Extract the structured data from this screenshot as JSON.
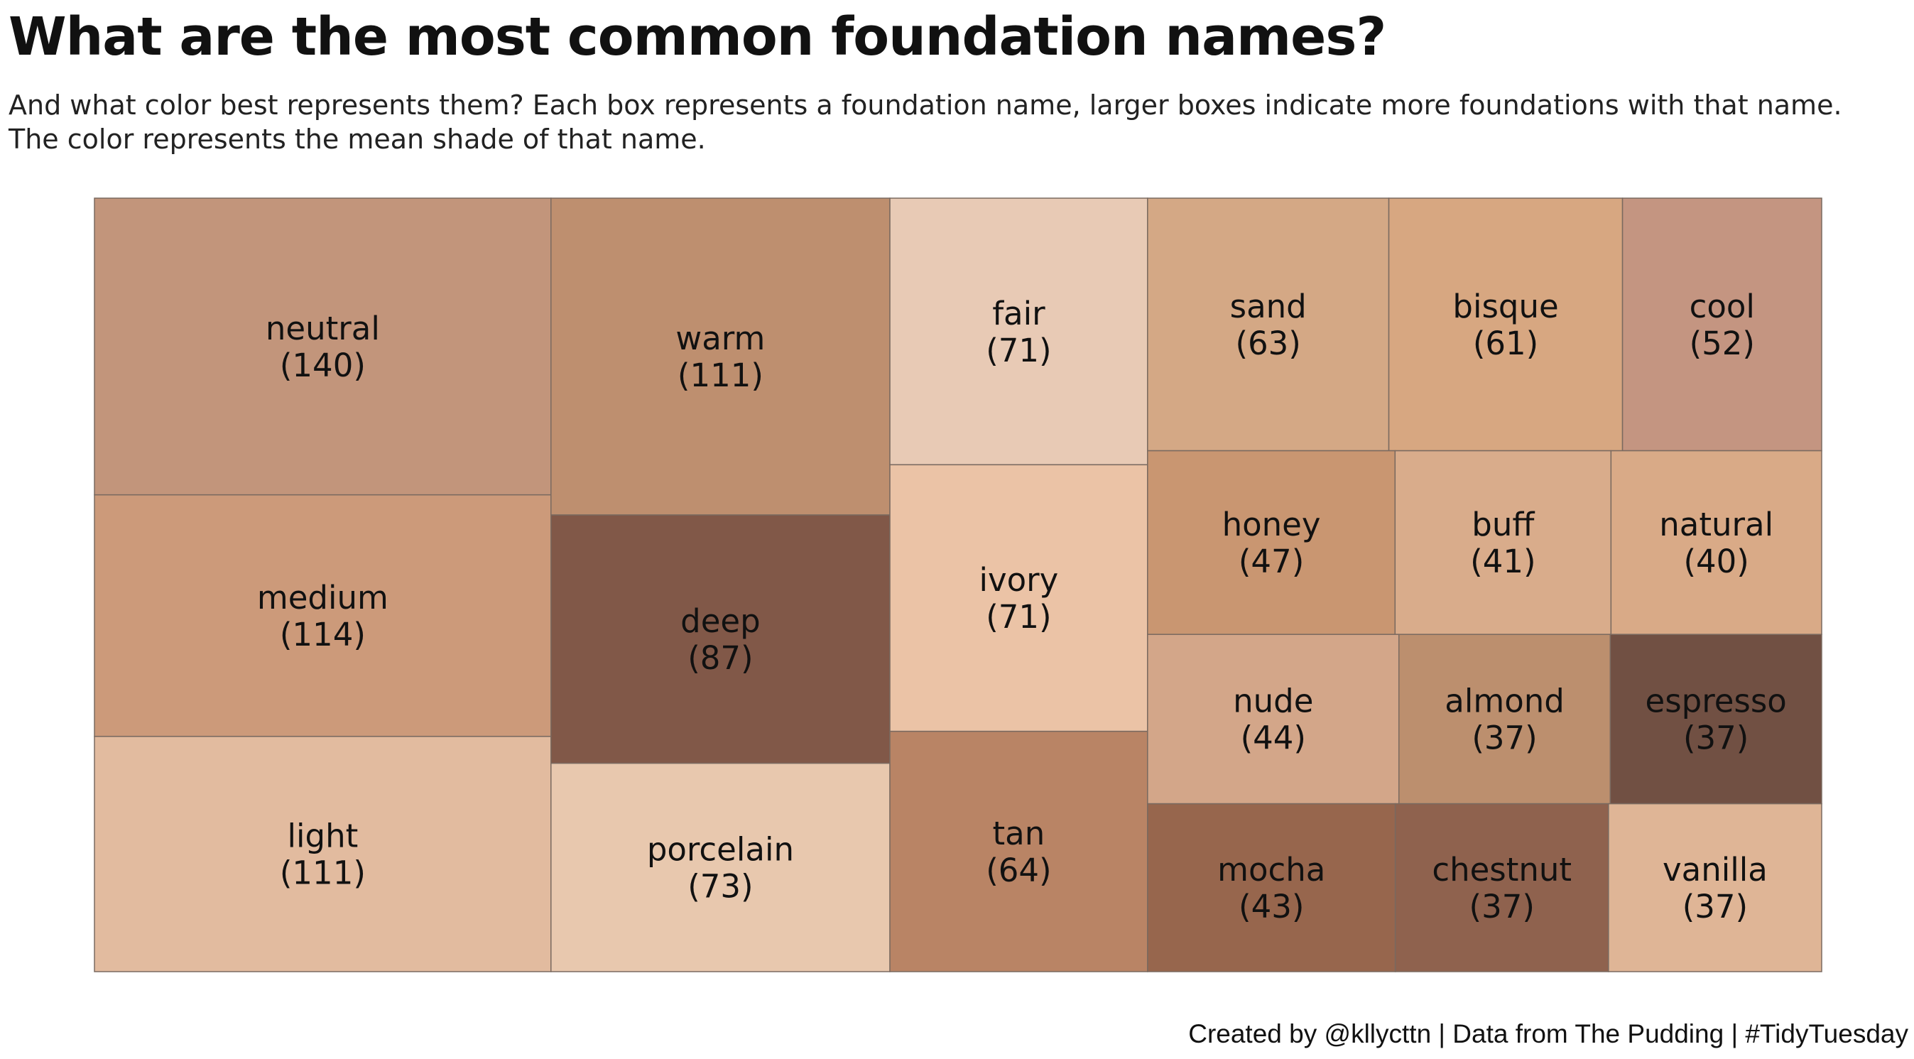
{
  "title": "What are the most common foundation names?",
  "subtitle_lines": [
    "And what color best represents them? Each box represents a foundation name, larger boxes indicate more foundations with that name.",
    "The color represents the mean shade of that name."
  ],
  "caption": "Created by @kllycttn | Data from The Pudding | #TidyTuesday",
  "chart_data": {
    "type": "treemap",
    "title": "What are the most common foundation names?",
    "subtitle": "And what color best represents them? Each box represents a foundation name, larger boxes indicate more foundations with that name. The color represents the mean shade of that name.",
    "caption": "Created by @kllycttn | Data from The Pudding | #TidyTuesday",
    "size_variable": "number of foundations with that name",
    "color_variable": "mean shade of that name",
    "label_format": "{name}\n({count})",
    "items": [
      {
        "name": "neutral",
        "count": 140,
        "color": "#C2957B"
      },
      {
        "name": "medium",
        "count": 114,
        "color": "#CC9A7A"
      },
      {
        "name": "light",
        "count": 111,
        "color": "#E2BB9F"
      },
      {
        "name": "warm",
        "count": 111,
        "color": "#BE8F6F"
      },
      {
        "name": "deep",
        "count": 87,
        "color": "#815848"
      },
      {
        "name": "porcelain",
        "count": 73,
        "color": "#E8C8AE"
      },
      {
        "name": "fair",
        "count": 71,
        "color": "#E8CAB5"
      },
      {
        "name": "ivory",
        "count": 71,
        "color": "#EBC3A6"
      },
      {
        "name": "tan",
        "count": 64,
        "color": "#B98465"
      },
      {
        "name": "sand",
        "count": 63,
        "color": "#D4A885"
      },
      {
        "name": "bisque",
        "count": 61,
        "color": "#D7A781"
      },
      {
        "name": "cool",
        "count": 52,
        "color": "#C49581"
      },
      {
        "name": "honey",
        "count": 47,
        "color": "#C99671"
      },
      {
        "name": "nude",
        "count": 44,
        "color": "#D3A689"
      },
      {
        "name": "mocha",
        "count": 43,
        "color": "#97664D"
      },
      {
        "name": "buff",
        "count": 41,
        "color": "#D9AC8B"
      },
      {
        "name": "natural",
        "count": 40,
        "color": "#D9AA87"
      },
      {
        "name": "almond",
        "count": 37,
        "color": "#BC8F6E"
      },
      {
        "name": "chestnut",
        "count": 37,
        "color": "#8F624E"
      },
      {
        "name": "espresso",
        "count": 37,
        "color": "#715043"
      },
      {
        "name": "vanilla",
        "count": 37,
        "color": "#DFB596"
      }
    ]
  }
}
